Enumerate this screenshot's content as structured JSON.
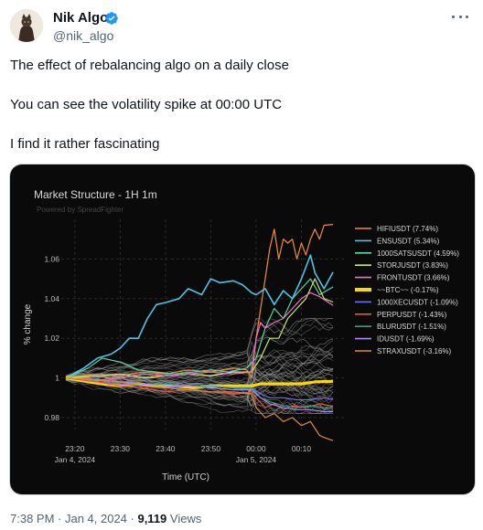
{
  "author": {
    "name": "Nik Algo",
    "handle": "@nik_algo",
    "verified_color": "#1d9bf0"
  },
  "post": {
    "line1": "The effect of rebalancing algo on a daily close",
    "line2": "You can see the volatility spike at 00:00 UTC",
    "line3": "I find it rather fascinating"
  },
  "chart_meta": {
    "title": "Market Structure - 1H 1m",
    "watermark": "Powered by SpreadFighter",
    "background": "#0a0a0a"
  },
  "chart_data": {
    "type": "line",
    "title": "Market Structure - 1H 1m",
    "xlabel": "Time (UTC)",
    "ylabel": "% change",
    "x_ticks": [
      {
        "value": 0,
        "line1": "23:20",
        "line2": "Jan 4, 2024"
      },
      {
        "value": 10,
        "line1": "23:30",
        "line2": ""
      },
      {
        "value": 20,
        "line1": "23:40",
        "line2": ""
      },
      {
        "value": 30,
        "line1": "23:50",
        "line2": ""
      },
      {
        "value": 40,
        "line1": "00:00",
        "line2": "Jan 5, 2024"
      },
      {
        "value": 50,
        "line1": "00:10",
        "line2": ""
      }
    ],
    "y_ticks": [
      "0.98",
      "1",
      "1.02",
      "1.04",
      "1.06"
    ],
    "y_tick_values": [
      0.98,
      1.0,
      1.02,
      1.04,
      1.06
    ],
    "xlim": [
      -3,
      60
    ],
    "ylim": [
      0.974,
      1.08
    ],
    "grid": true,
    "legend_position": "right",
    "series": [
      {
        "name": "HIFIUSDT (7.74%)",
        "color": "#f28e2b",
        "width": 1.2,
        "points": [
          [
            -2,
            1.0
          ],
          [
            5,
            1.002
          ],
          [
            10,
            1.001
          ],
          [
            15,
            1.003
          ],
          [
            20,
            1.002
          ],
          [
            25,
            1.004
          ],
          [
            30,
            1.003
          ],
          [
            35,
            1.005
          ],
          [
            38,
            1.004
          ],
          [
            39,
            1.0
          ],
          [
            40,
            1.02
          ],
          [
            41,
            1.035
          ],
          [
            42,
            1.05
          ],
          [
            43,
            1.065
          ],
          [
            44,
            1.075
          ],
          [
            45,
            1.06
          ],
          [
            46,
            1.07
          ],
          [
            47,
            1.068
          ],
          [
            48,
            1.07
          ],
          [
            49,
            1.06
          ],
          [
            50,
            1.068
          ],
          [
            51,
            1.062
          ],
          [
            52,
            1.07
          ],
          [
            53,
            1.075
          ],
          [
            54,
            1.07
          ],
          [
            55,
            1.077
          ],
          [
            57,
            1.0774
          ]
        ]
      },
      {
        "name": "ENSUSDT (5.34%)",
        "color": "#4dc3e8",
        "width": 1.6,
        "points": [
          [
            -2,
            1.0
          ],
          [
            2,
            1.005
          ],
          [
            5,
            1.01
          ],
          [
            8,
            1.012
          ],
          [
            10,
            1.015
          ],
          [
            12,
            1.02
          ],
          [
            14,
            1.02
          ],
          [
            16,
            1.03
          ],
          [
            18,
            1.037
          ],
          [
            20,
            1.038
          ],
          [
            23,
            1.04
          ],
          [
            25,
            1.045
          ],
          [
            28,
            1.042
          ],
          [
            30,
            1.05
          ],
          [
            32,
            1.048
          ],
          [
            35,
            1.049
          ],
          [
            37,
            1.047
          ],
          [
            39,
            1.043
          ],
          [
            40,
            1.042
          ],
          [
            42,
            1.045
          ],
          [
            44,
            1.037
          ],
          [
            46,
            1.044
          ],
          [
            48,
            1.04
          ],
          [
            50,
            1.05
          ],
          [
            52,
            1.062
          ],
          [
            53,
            1.053
          ],
          [
            55,
            1.045
          ],
          [
            57,
            1.0534
          ]
        ]
      },
      {
        "name": "1000SATSUSDT (4.59%)",
        "color": "#59d6a0",
        "width": 1.2,
        "points": [
          [
            -2,
            1.0
          ],
          [
            3,
            1.005
          ],
          [
            6,
            1.01
          ],
          [
            10,
            1.008
          ],
          [
            14,
            1.004
          ],
          [
            18,
            1.003
          ],
          [
            22,
            1.002
          ],
          [
            26,
            1.003
          ],
          [
            30,
            1.004
          ],
          [
            34,
            1.003
          ],
          [
            38,
            1.005
          ],
          [
            40,
            1.01
          ],
          [
            42,
            1.025
          ],
          [
            44,
            1.035
          ],
          [
            46,
            1.03
          ],
          [
            48,
            1.04
          ],
          [
            50,
            1.045
          ],
          [
            52,
            1.05
          ],
          [
            54,
            1.042
          ],
          [
            57,
            1.0459
          ]
        ]
      },
      {
        "name": "STORJUSDT (3.83%)",
        "color": "#c8e86a",
        "width": 1.2,
        "points": [
          [
            -2,
            1.0
          ],
          [
            5,
            1.001
          ],
          [
            10,
            1.002
          ],
          [
            15,
            1.0
          ],
          [
            20,
            1.001
          ],
          [
            25,
            1.002
          ],
          [
            30,
            1.001
          ],
          [
            35,
            1.003
          ],
          [
            39,
            1.003
          ],
          [
            41,
            1.01
          ],
          [
            43,
            1.02
          ],
          [
            45,
            1.02
          ],
          [
            47,
            1.03
          ],
          [
            49,
            1.035
          ],
          [
            51,
            1.04
          ],
          [
            53,
            1.05
          ],
          [
            55,
            1.04
          ],
          [
            57,
            1.0383
          ]
        ]
      },
      {
        "name": "FRONTUSDT (3.66%)",
        "color": "#f06ec8",
        "width": 1.2,
        "points": [
          [
            -2,
            1.0
          ],
          [
            5,
            0.999
          ],
          [
            10,
            1.0
          ],
          [
            15,
            1.002
          ],
          [
            20,
            1.001
          ],
          [
            25,
            1.002
          ],
          [
            30,
            1.003
          ],
          [
            35,
            1.002
          ],
          [
            39,
            1.003
          ],
          [
            40,
            1.02
          ],
          [
            41,
            1.028
          ],
          [
            42,
            1.025
          ],
          [
            44,
            1.028
          ],
          [
            46,
            1.03
          ],
          [
            48,
            1.035
          ],
          [
            50,
            1.04
          ],
          [
            52,
            1.043
          ],
          [
            54,
            1.041
          ],
          [
            57,
            1.0366
          ]
        ]
      },
      {
        "name": "~~BTC~~ (-0.17%)",
        "color": "#ffd700",
        "width": 3.2,
        "points": [
          [
            -2,
            1.0
          ],
          [
            3,
            0.998
          ],
          [
            6,
            0.997
          ],
          [
            10,
            0.996
          ],
          [
            14,
            0.997
          ],
          [
            18,
            0.996
          ],
          [
            22,
            0.996
          ],
          [
            26,
            0.995
          ],
          [
            30,
            0.996
          ],
          [
            34,
            0.996
          ],
          [
            38,
            0.996
          ],
          [
            39,
            0.996
          ],
          [
            41,
            0.997
          ],
          [
            44,
            0.997
          ],
          [
            47,
            0.997
          ],
          [
            50,
            0.997
          ],
          [
            53,
            0.998
          ],
          [
            57,
            0.9983
          ]
        ]
      },
      {
        "name": "1000XECUSDT (-1.09%)",
        "color": "#7070e8",
        "width": 1.2,
        "points": [
          [
            -2,
            1.0
          ],
          [
            5,
            0.998
          ],
          [
            10,
            0.997
          ],
          [
            15,
            0.996
          ],
          [
            20,
            0.995
          ],
          [
            25,
            0.996
          ],
          [
            30,
            0.995
          ],
          [
            35,
            0.994
          ],
          [
            39,
            0.995
          ],
          [
            41,
            0.992
          ],
          [
            43,
            0.99
          ],
          [
            46,
            0.99
          ],
          [
            49,
            0.989
          ],
          [
            52,
            0.989
          ],
          [
            55,
            0.99
          ],
          [
            57,
            0.9891
          ]
        ]
      },
      {
        "name": "PERPUSDT (-1.43%)",
        "color": "#e8553f",
        "width": 1.2,
        "points": [
          [
            -2,
            1.0
          ],
          [
            5,
            0.998
          ],
          [
            10,
            0.996
          ],
          [
            15,
            0.995
          ],
          [
            20,
            0.993
          ],
          [
            25,
            0.994
          ],
          [
            30,
            0.993
          ],
          [
            35,
            0.992
          ],
          [
            39,
            0.993
          ],
          [
            40,
            0.99
          ],
          [
            42,
            0.985
          ],
          [
            44,
            0.987
          ],
          [
            46,
            0.984
          ],
          [
            48,
            0.986
          ],
          [
            51,
            0.985
          ],
          [
            54,
            0.987
          ],
          [
            57,
            0.9857
          ]
        ]
      },
      {
        "name": "BLURUSDT (-1.51%)",
        "color": "#3a9e7a",
        "width": 1.2,
        "points": [
          [
            -2,
            1.0
          ],
          [
            5,
            0.999
          ],
          [
            10,
            0.998
          ],
          [
            15,
            0.997
          ],
          [
            20,
            0.997
          ],
          [
            25,
            0.996
          ],
          [
            30,
            0.996
          ],
          [
            35,
            0.995
          ],
          [
            39,
            0.995
          ],
          [
            41,
            0.99
          ],
          [
            43,
            0.988
          ],
          [
            46,
            0.986
          ],
          [
            49,
            0.985
          ],
          [
            52,
            0.986
          ],
          [
            55,
            0.985
          ],
          [
            57,
            0.9849
          ]
        ]
      },
      {
        "name": "IDUSDT (-1.69%)",
        "color": "#a78ef0",
        "width": 1.2,
        "points": [
          [
            -2,
            1.0
          ],
          [
            5,
            0.999
          ],
          [
            10,
            0.998
          ],
          [
            15,
            0.997
          ],
          [
            20,
            0.996
          ],
          [
            25,
            0.996
          ],
          [
            30,
            0.995
          ],
          [
            35,
            0.994
          ],
          [
            39,
            0.994
          ],
          [
            41,
            0.99
          ],
          [
            43,
            0.987
          ],
          [
            46,
            0.985
          ],
          [
            49,
            0.984
          ],
          [
            52,
            0.984
          ],
          [
            55,
            0.983
          ],
          [
            57,
            0.9831
          ]
        ]
      },
      {
        "name": "STRAXUSDT (-3.16%)",
        "color": "#e08a3a",
        "width": 1.2,
        "points": [
          [
            -2,
            1.0
          ],
          [
            5,
            0.999
          ],
          [
            10,
            0.998
          ],
          [
            15,
            0.996
          ],
          [
            20,
            0.995
          ],
          [
            25,
            0.994
          ],
          [
            30,
            0.993
          ],
          [
            35,
            0.993
          ],
          [
            39,
            0.992
          ],
          [
            40,
            0.985
          ],
          [
            42,
            0.98
          ],
          [
            44,
            0.982
          ],
          [
            46,
            0.978
          ],
          [
            48,
            0.98
          ],
          [
            50,
            0.976
          ],
          [
            52,
            0.978
          ],
          [
            54,
            0.971
          ],
          [
            55,
            0.97
          ],
          [
            57,
            0.9684
          ]
        ]
      }
    ]
  },
  "footer": {
    "time": "7:38 PM · Jan 4, 2024 · ",
    "views_count": "9,119",
    "views_label": " Views"
  }
}
